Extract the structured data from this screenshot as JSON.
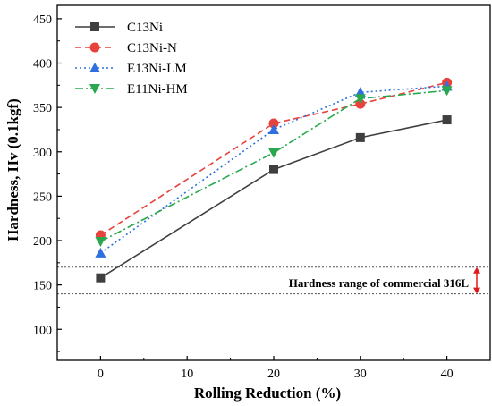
{
  "chart_data": {
    "type": "line",
    "title": "",
    "xlabel": "Rolling Reduction (%)",
    "ylabel": "Hardness, Hv (0.1kgf)",
    "xlim": [
      -5,
      45
    ],
    "ylim": [
      65,
      465
    ],
    "xticks": [
      0,
      10,
      20,
      30,
      40
    ],
    "yticks": [
      100,
      150,
      200,
      250,
      300,
      350,
      400,
      450
    ],
    "grid": false,
    "legend_position": "top-left",
    "x": [
      0,
      20,
      30,
      40
    ],
    "series": [
      {
        "name": "C13Ni",
        "values": [
          158,
          280,
          316,
          336
        ],
        "color": "#3f3f3f",
        "line_style": "solid",
        "marker": "square"
      },
      {
        "name": "C13Ni-N",
        "values": [
          206,
          332,
          354,
          378
        ],
        "color": "#e8423c",
        "line_style": "dashed",
        "marker": "circle"
      },
      {
        "name": "E13Ni-LM",
        "values": [
          186,
          325,
          367,
          374
        ],
        "color": "#2f6fdf",
        "line_style": "dotted",
        "marker": "triangle-up"
      },
      {
        "name": "E11Ni-HM",
        "values": [
          199,
          299,
          360,
          369
        ],
        "color": "#2aa84f",
        "line_style": "dashdot",
        "marker": "triangle-down"
      }
    ],
    "reference_band": {
      "label": "Hardness range of commercial 316L",
      "min": 140,
      "max": 170,
      "line_color": "#555555",
      "arrow_color": "#e01a1a"
    }
  }
}
